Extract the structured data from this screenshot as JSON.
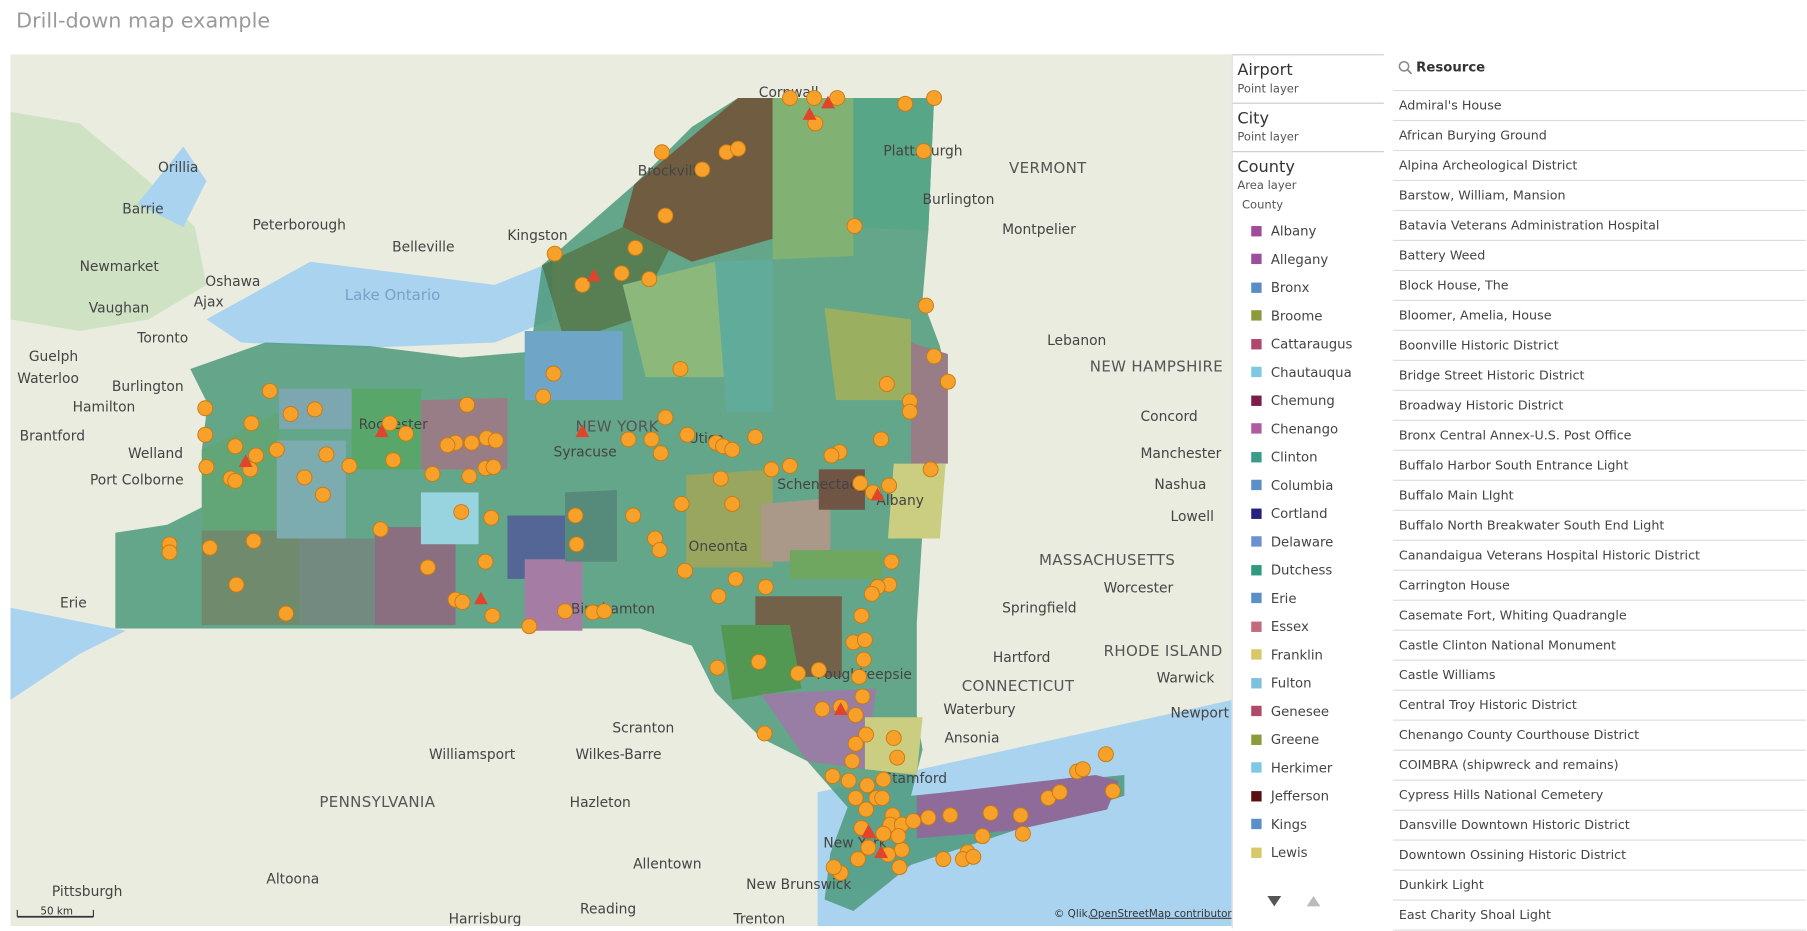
{
  "header": {
    "title": "Drill-down map example"
  },
  "map": {
    "place_labels": [
      "Cornwall",
      "Orillia",
      "Brockville",
      "Plattsburgh",
      "VERMONT",
      "Barrie",
      "Peterborough",
      "Burlington",
      "Belleville",
      "Kingston",
      "Montpelier",
      "Newmarket",
      "Oshawa",
      "Ajax",
      "Vaughan",
      "Lake Ontario",
      "Toronto",
      "Lebanon",
      "Guelph",
      "Waterloo",
      "NEW HAMPSHIRE",
      "Burlington",
      "Hamilton",
      "Concord",
      "NEW YORK",
      "Rochester",
      "Brantford",
      "Syracuse",
      "Utica",
      "Manchester",
      "Welland",
      "Port Colborne",
      "Nashua",
      "Schenectady",
      "Albany",
      "Lowell",
      "Oneonta",
      "MASSACHUSETTS",
      "Worcester",
      "Binghamton",
      "Erie",
      "Springfield",
      "Hartford",
      "RHODE ISLAND",
      "Poughkeepsie",
      "CONNECTICUT",
      "Warwick",
      "Waterbury",
      "Newport",
      "Scranton",
      "Ansonia",
      "Williamsport",
      "Wilkes-Barre",
      "Stamford",
      "PENNSYLVANIA",
      "Hazleton",
      "New York",
      "Allentown",
      "Altoona",
      "New Brunswick",
      "Pittsburgh",
      "Reading",
      "Harrisburg",
      "Trenton"
    ],
    "scale": "50 km",
    "attribution": "© Qlik,",
    "attribution_link": "OpenStreetMap contributors"
  },
  "layers": [
    {
      "name": "Airport",
      "type": "Point layer"
    },
    {
      "name": "City",
      "type": "Point layer"
    },
    {
      "name": "County",
      "type": "Area layer",
      "legend_title": "County",
      "legend": [
        {
          "name": "Albany",
          "color": "#a34a9c"
        },
        {
          "name": "Allegany",
          "color": "#9b4f9e"
        },
        {
          "name": "Bronx",
          "color": "#5b8dc4"
        },
        {
          "name": "Broome",
          "color": "#8c9a3b"
        },
        {
          "name": "Cattaraugus",
          "color": "#b0486c"
        },
        {
          "name": "Chautauqua",
          "color": "#7ec8e3"
        },
        {
          "name": "Chemung",
          "color": "#7b1e4a"
        },
        {
          "name": "Chenango",
          "color": "#b05aa0"
        },
        {
          "name": "Clinton",
          "color": "#3a9b86"
        },
        {
          "name": "Columbia",
          "color": "#5b8fc8"
        },
        {
          "name": "Cortland",
          "color": "#26217f"
        },
        {
          "name": "Delaware",
          "color": "#6b8fd0"
        },
        {
          "name": "Dutchess",
          "color": "#2f9b7e"
        },
        {
          "name": "Erie",
          "color": "#5b8fc8"
        },
        {
          "name": "Essex",
          "color": "#c46a7a"
        },
        {
          "name": "Franklin",
          "color": "#d8c86a"
        },
        {
          "name": "Fulton",
          "color": "#7ec0e0"
        },
        {
          "name": "Genesee",
          "color": "#b04a6a"
        },
        {
          "name": "Greene",
          "color": "#8c9b3a"
        },
        {
          "name": "Herkimer",
          "color": "#7ec8e3"
        },
        {
          "name": "Jefferson",
          "color": "#5a1010"
        },
        {
          "name": "Kings",
          "color": "#5b8fc8"
        },
        {
          "name": "Lewis",
          "color": "#d8c86a"
        }
      ]
    }
  ],
  "resource": {
    "title": "Resource",
    "items": [
      "Admiral's House",
      "African Burying Ground",
      "Alpina Archeological District",
      "Barstow, William, Mansion",
      "Batavia Veterans Administration Hospital",
      "Battery Weed",
      "Block House, The",
      "Bloomer, Amelia, House",
      "Boonville Historic District",
      "Bridge Street Historic District",
      "Broadway Historic District",
      "Bronx Central Annex-U.S. Post Office",
      "Buffalo Harbor South Entrance Light",
      "Buffalo Main LIght",
      "Buffalo North Breakwater South End Light",
      "Canandaigua Veterans Hospital Historic District",
      "Carrington House",
      "Casemate Fort, Whiting Quadrangle",
      "Castle Clinton National Monument",
      "Castle Williams",
      "Central Troy Historic District",
      "Chenango County Courthouse District",
      "COIMBRA (shipwreck and remains)",
      "Cypress Hills National Cemetery",
      "Dansville Downtown Historic District",
      "Downtown Ossining Historic District",
      "Dunkirk Light",
      "East Charity Shoal Light"
    ]
  }
}
